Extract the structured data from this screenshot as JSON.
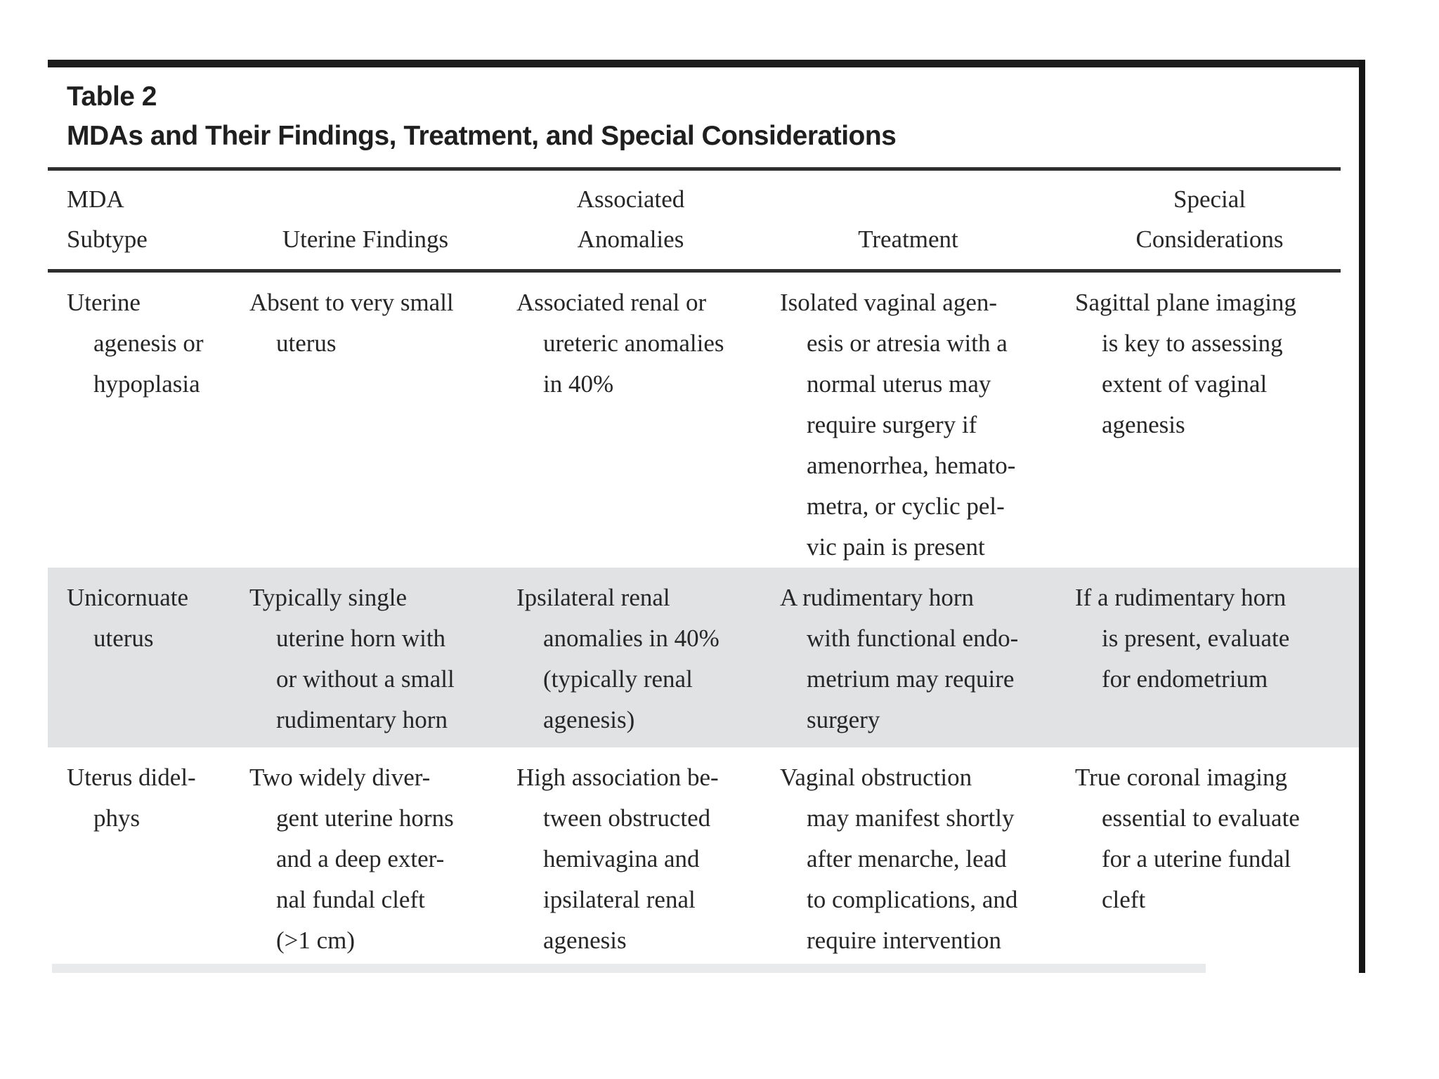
{
  "table": {
    "label": "Table 2",
    "title": "MDAs and Their Findings, Treatment, and Special Considerations",
    "columns": {
      "mda_subtype": "MDA\nSubtype",
      "uterine_findings": "Uterine Findings",
      "associated_anomalies": "Associated\nAnomalies",
      "treatment": "Treatment",
      "special_considerations": "Special\nConsiderations"
    },
    "rows": [
      {
        "shaded": false,
        "mda_subtype": "Uterine\nagenesis or\nhypoplasia",
        "uterine_findings": "Absent to very small\nuterus",
        "associated_anomalies": "Associated renal or\nureteric anomalies\nin 40%",
        "treatment": "Isolated vaginal agen-\nesis or atresia with a\nnormal uterus may\nrequire surgery if\namenorrhea, hemato-\nmetra, or cyclic pel-\nvic pain is present",
        "special_considerations": "Sagittal plane imaging\nis key to assessing\nextent of vaginal\nagenesis"
      },
      {
        "shaded": true,
        "mda_subtype": "Unicornuate\nuterus",
        "uterine_findings": "Typically single\nuterine horn with\nor without a small\nrudimentary horn",
        "associated_anomalies": "Ipsilateral renal\nanomalies in 40%\n(typically renal\nagenesis)",
        "treatment": "A rudimentary horn\nwith functional endo-\nmetrium may require\nsurgery",
        "special_considerations": "If a rudimentary horn\nis present, evaluate\nfor endometrium"
      },
      {
        "shaded": false,
        "mda_subtype": "Uterus didel-\nphys",
        "uterine_findings": "Two widely diver-\ngent uterine horns\nand a deep exter-\nnal fundal cleft\n(>1 cm)",
        "associated_anomalies": "High association be-\ntween obstructed\nhemivagina and\nipsilateral renal\nagenesis",
        "treatment": "Vaginal obstruction\nmay manifest shortly\nafter menarche, lead\nto complications, and\nrequire intervention",
        "special_considerations": "True coronal imaging\nessential to evaluate\nfor a uterine fundal\ncleft"
      }
    ]
  },
  "colors": {
    "shaded_row_bg": "#e1e2e4",
    "rule_dark": "#1c1c1c",
    "rule_mid": "#2e2e2e",
    "text": "#262626",
    "partial_row_strip": "#e9eaec"
  }
}
